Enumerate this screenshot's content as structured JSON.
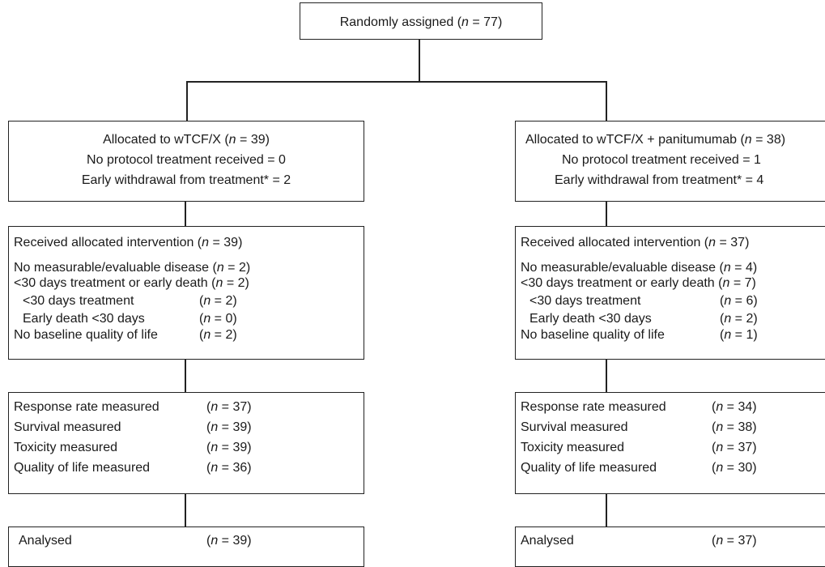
{
  "top": {
    "text_before": "Randomly assigned (",
    "n_label": "n",
    "text_after": " = 77)"
  },
  "arms": [
    {
      "alloc": {
        "l1_before": "Allocated to wTCF/X (",
        "l1_n": "n",
        "l1_after": " = 39)",
        "l2": "No protocol treatment received = 0",
        "l3": "Early withdrawal from treatment* = 2"
      },
      "received": {
        "head_before": "Received allocated intervention (",
        "head_n": "n",
        "head_after": " = 39)",
        "rows": [
          {
            "label": "No measurable/evaluable disease (",
            "n": "n",
            "val": " = 2)"
          },
          {
            "label": "<30 days treatment or early death (",
            "n": "n",
            "val": " = 2)"
          }
        ],
        "sub": [
          {
            "label": "<30 days treatment",
            "pre": "(",
            "n": "n",
            "val": " = 2)"
          },
          {
            "label": "Early death <30 days",
            "pre": "(",
            "n": "n",
            "val": " = 0)"
          },
          {
            "label": "No baseline quality of life",
            "pre": "(",
            "n": "n",
            "val": " = 2)"
          }
        ]
      },
      "measured": [
        {
          "label": "Response rate measured",
          "pre": "(",
          "n": "n",
          "val": " = 37)"
        },
        {
          "label": "Survival measured",
          "pre": "(",
          "n": "n",
          "val": " = 39)"
        },
        {
          "label": "Toxicity measured",
          "pre": "(",
          "n": "n",
          "val": " = 39)"
        },
        {
          "label": "Quality of life measured",
          "pre": "(",
          "n": "n",
          "val": " = 36)"
        }
      ],
      "analysed": {
        "label": "Analysed",
        "pre": "(",
        "n": "n",
        "val": " = 39)"
      }
    },
    {
      "alloc": {
        "l1_before": "Allocated to wTCF/X + panitumumab (",
        "l1_n": "n",
        "l1_after": " = 38)",
        "l2": "No protocol treatment received = 1",
        "l3": "Early withdrawal from treatment* = 4"
      },
      "received": {
        "head_before": "Received allocated intervention (",
        "head_n": "n",
        "head_after": " = 37)",
        "rows": [
          {
            "label": "No measurable/evaluable disease (",
            "n": "n",
            "val": " = 4)"
          },
          {
            "label": "<30 days treatment or early death (",
            "n": "n",
            "val": " = 7)"
          }
        ],
        "sub": [
          {
            "label": "<30 days treatment",
            "pre": "(",
            "n": "n",
            "val": " = 6)"
          },
          {
            "label": "Early death <30 days",
            "pre": "(",
            "n": "n",
            "val": " = 2)"
          },
          {
            "label": "No baseline quality of life",
            "pre": "(",
            "n": "n",
            "val": " = 1)"
          }
        ]
      },
      "measured": [
        {
          "label": "Response rate measured",
          "pre": "(",
          "n": "n",
          "val": " = 34)"
        },
        {
          "label": "Survival measured",
          "pre": "(",
          "n": "n",
          "val": " = 38)"
        },
        {
          "label": "Toxicity measured",
          "pre": "(",
          "n": "n",
          "val": " = 37)"
        },
        {
          "label": "Quality of life measured",
          "pre": "(",
          "n": "n",
          "val": " = 30)"
        }
      ],
      "analysed": {
        "label": "Analysed",
        "pre": "(",
        "n": "n",
        "val": " = 37)"
      }
    }
  ]
}
